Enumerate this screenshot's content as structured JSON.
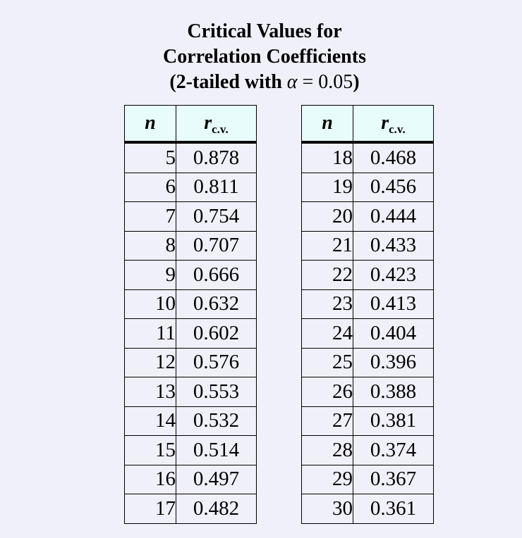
{
  "title": {
    "line1": "Critical Values for",
    "line2": "Correlation Coefficients",
    "line3_prefix": "(2-tailed with ",
    "alpha_symbol": "α",
    "operator": "=",
    "alpha_value": "0.05",
    "line3_suffix": ")"
  },
  "headers": {
    "n": "n",
    "r": "r",
    "r_subscript": "c.v."
  },
  "left_table": {
    "rows": [
      {
        "n": "5",
        "r": "0.878"
      },
      {
        "n": "6",
        "r": "0.811"
      },
      {
        "n": "7",
        "r": "0.754"
      },
      {
        "n": "8",
        "r": "0.707"
      },
      {
        "n": "9",
        "r": "0.666"
      },
      {
        "n": "10",
        "r": "0.632"
      },
      {
        "n": "11",
        "r": "0.602"
      },
      {
        "n": "12",
        "r": "0.576"
      },
      {
        "n": "13",
        "r": "0.553"
      },
      {
        "n": "14",
        "r": "0.532"
      },
      {
        "n": "15",
        "r": "0.514"
      },
      {
        "n": "16",
        "r": "0.497"
      },
      {
        "n": "17",
        "r": "0.482"
      }
    ]
  },
  "right_table": {
    "rows": [
      {
        "n": "18",
        "r": "0.468"
      },
      {
        "n": "19",
        "r": "0.456"
      },
      {
        "n": "20",
        "r": "0.444"
      },
      {
        "n": "21",
        "r": "0.433"
      },
      {
        "n": "22",
        "r": "0.423"
      },
      {
        "n": "23",
        "r": "0.413"
      },
      {
        "n": "24",
        "r": "0.404"
      },
      {
        "n": "25",
        "r": "0.396"
      },
      {
        "n": "26",
        "r": "0.388"
      },
      {
        "n": "27",
        "r": "0.381"
      },
      {
        "n": "28",
        "r": "0.374"
      },
      {
        "n": "29",
        "r": "0.367"
      },
      {
        "n": "30",
        "r": "0.361"
      }
    ]
  },
  "colors": {
    "background": "#f0f0fa",
    "header_background": "#e8fcfc",
    "border": "#000000"
  }
}
